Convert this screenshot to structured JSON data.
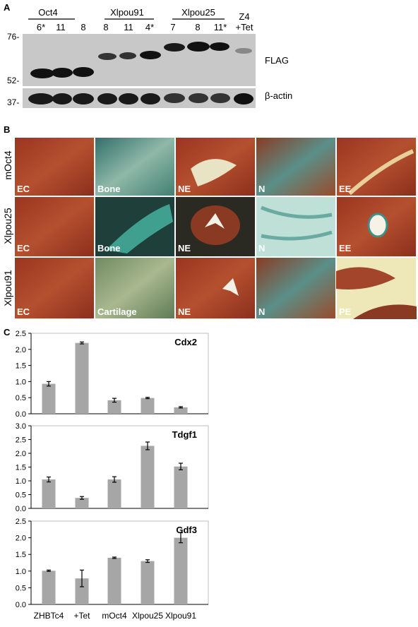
{
  "panels": {
    "a": "A",
    "b": "B",
    "c": "C"
  },
  "western": {
    "groups": [
      {
        "name": "Oct4",
        "lanes": [
          "6*",
          "11",
          "8"
        ]
      },
      {
        "name": "Xlpou91",
        "lanes": [
          "8",
          "11",
          "4*"
        ]
      },
      {
        "name": "Xlpou25",
        "lanes": [
          "7",
          "8",
          "11*"
        ]
      }
    ],
    "control": {
      "line1": "Z4",
      "line2": "+Tet"
    },
    "markers": [
      "76-",
      "52-",
      "37-"
    ],
    "bands": {
      "top": "FLAG",
      "bottom": "β-actin"
    }
  },
  "histology": {
    "rows": [
      {
        "label": "mOct4",
        "tiles": [
          "EC",
          "Bone",
          "NE",
          "N",
          "EE"
        ]
      },
      {
        "label": "Xlpou25",
        "tiles": [
          "EC",
          "Bone",
          "NE",
          "N",
          "EE"
        ]
      },
      {
        "label": "Xlpou91",
        "tiles": [
          "EC",
          "Cartilage",
          "NE",
          "N",
          "PE"
        ]
      }
    ],
    "colors": {
      "red": "#a33a22",
      "teal": "#3a9a90",
      "cream": "#eee8b8"
    }
  },
  "chart_data": [
    {
      "type": "bar",
      "title": "Cdx2",
      "categories": [
        "ZHBTc4",
        "+Tet",
        "mOct4",
        "Xlpou25",
        "Xlpou91"
      ],
      "values": [
        0.93,
        2.2,
        0.42,
        0.49,
        0.2
      ],
      "errors": [
        0.07,
        0.03,
        0.06,
        0.02,
        0.02
      ],
      "yticks": [
        "0.0",
        "0.5",
        "1.0",
        "1.5",
        "2.0",
        "2.5"
      ],
      "ylim": [
        0,
        2.5
      ],
      "bar_color": "#a6a6a6"
    },
    {
      "type": "bar",
      "title": "Tdgf1",
      "categories": [
        "ZHBTc4",
        "+Tet",
        "mOct4",
        "Xlpou25",
        "Xlpou91"
      ],
      "values": [
        1.05,
        0.38,
        1.05,
        2.27,
        1.52
      ],
      "errors": [
        0.09,
        0.05,
        0.1,
        0.14,
        0.12
      ],
      "yticks": [
        "0.0",
        "0.5",
        "1.0",
        "1.5",
        "2.0",
        "2.5",
        "3.0"
      ],
      "ylim": [
        0,
        3.0
      ],
      "bar_color": "#a6a6a6"
    },
    {
      "type": "bar",
      "title": "Gdf3",
      "categories": [
        "ZHBTc4",
        "+Tet",
        "mOct4",
        "Xlpou25",
        "Xlpou91"
      ],
      "values": [
        1.01,
        0.78,
        1.4,
        1.3,
        2.0
      ],
      "errors": [
        0.02,
        0.25,
        0.02,
        0.04,
        0.15
      ],
      "yticks": [
        "0.0",
        "0.5",
        "1.0",
        "1.5",
        "2.0",
        "2.5"
      ],
      "ylim": [
        0,
        2.5
      ],
      "bar_color": "#a6a6a6"
    }
  ]
}
